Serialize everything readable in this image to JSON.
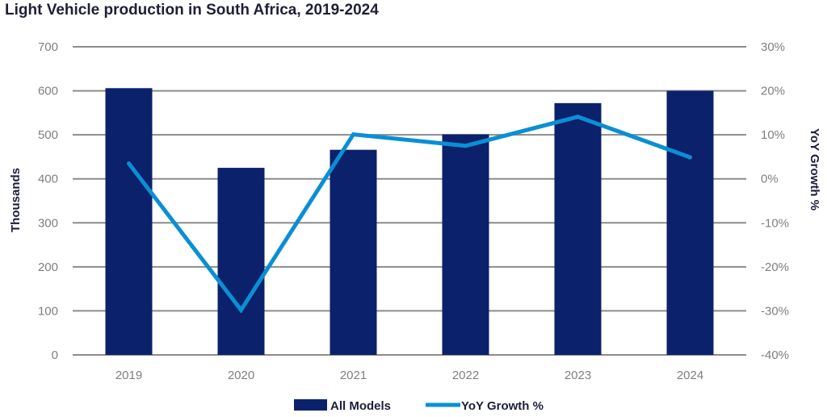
{
  "chart_data": {
    "type": "bar",
    "title": "Light Vehicle production in South Africa, 2019-2024",
    "categories": [
      "2019",
      "2020",
      "2021",
      "2022",
      "2023",
      "2024"
    ],
    "series": [
      {
        "name": "All Models",
        "type": "bar",
        "axis": "left",
        "color": "#0b216b",
        "values": [
          606,
          425,
          466,
          501,
          572,
          600
        ]
      },
      {
        "name": "YoY Growth %",
        "type": "line",
        "axis": "right",
        "color": "#0a8fd4",
        "values": [
          3.5,
          -29.8,
          10.1,
          7.5,
          14.1,
          4.9
        ]
      }
    ],
    "ylabel": "Thousands",
    "ylabel_right": "YoY Growth %",
    "ylim": [
      0,
      700
    ],
    "ylim_right": [
      -40,
      30
    ],
    "yticks": [
      "0",
      "100",
      "200",
      "300",
      "400",
      "500",
      "600",
      "700"
    ],
    "yticks_right": [
      "-40%",
      "-30%",
      "-20%",
      "-10%",
      "0%",
      "10%",
      "20%",
      "30%"
    ],
    "grid": true,
    "legend_position": "bottom-center"
  }
}
